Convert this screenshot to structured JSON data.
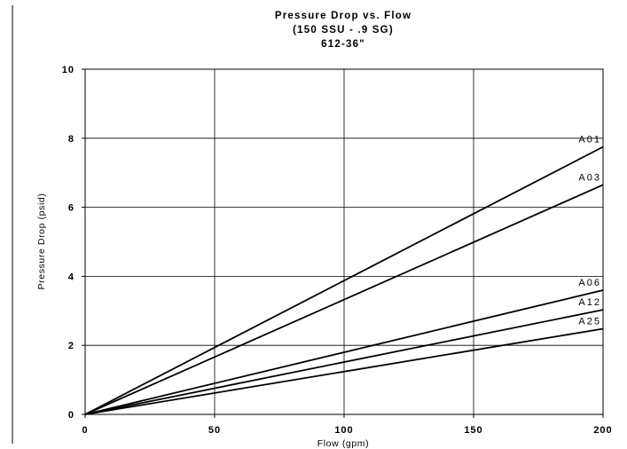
{
  "chart_data": {
    "type": "line",
    "title_lines": [
      "Pressure Drop vs. Flow",
      "(150 SSU - .9 SG)",
      "612-36\""
    ],
    "xlabel": "Flow (gpm)",
    "ylabel": "Pressure Drop (psid)",
    "xlim": [
      0,
      200
    ],
    "ylim": [
      0,
      10
    ],
    "x_ticks": [
      "0",
      "50",
      "100",
      "150",
      "200"
    ],
    "y_ticks": [
      "0",
      "2",
      "4",
      "6",
      "8",
      "10"
    ],
    "grid": true,
    "legend": "inline labels at right",
    "series": [
      {
        "name": "A01",
        "x": [
          0,
          200
        ],
        "y": [
          0,
          7.75
        ]
      },
      {
        "name": "A03",
        "x": [
          0,
          200
        ],
        "y": [
          0,
          6.65
        ]
      },
      {
        "name": "A06",
        "x": [
          0,
          200
        ],
        "y": [
          0,
          3.6
        ]
      },
      {
        "name": "A12",
        "x": [
          0,
          200
        ],
        "y": [
          0,
          3.03
        ]
      },
      {
        "name": "A25",
        "x": [
          0,
          200
        ],
        "y": [
          0,
          2.48
        ]
      }
    ]
  }
}
